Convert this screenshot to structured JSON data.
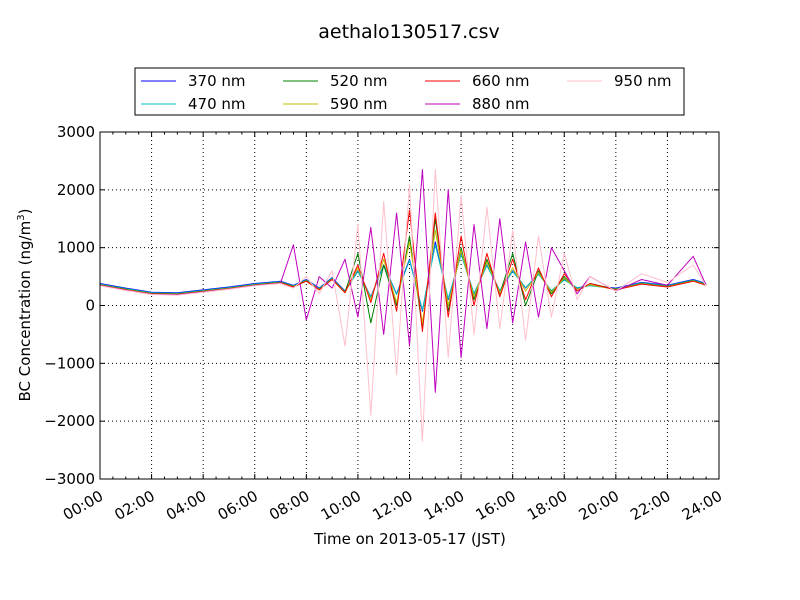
{
  "chart_data": {
    "type": "line",
    "title": "aethalo130517.csv",
    "xlabel": "Time on 2013-05-17 (JST)",
    "ylabel_main": "BC Concentration (ng/m",
    "ylabel_sup": "3",
    "ylabel_close": ")",
    "xlim": [
      "00:00",
      "24:00"
    ],
    "ylim": [
      -3000,
      3000
    ],
    "grid": true,
    "legend_position": "top",
    "x_ticks": [
      "00:00",
      "02:00",
      "04:00",
      "06:00",
      "08:00",
      "10:00",
      "12:00",
      "14:00",
      "16:00",
      "18:00",
      "20:00",
      "22:00",
      "24:00"
    ],
    "y_ticks": [
      3000,
      2000,
      1000,
      0,
      -1000,
      -2000,
      -3000
    ],
    "y_tick_labels": [
      "3000",
      "2000",
      "1000",
      "0",
      "−1000",
      "−2000",
      "−3000"
    ],
    "x_hours": [
      0,
      1,
      2,
      3,
      4,
      5,
      6,
      7,
      7.5,
      8,
      8.5,
      9,
      9.5,
      10,
      10.5,
      11,
      11.5,
      12,
      12.5,
      13,
      13.5,
      14,
      14.5,
      15,
      15.5,
      16,
      16.5,
      17,
      17.5,
      18,
      18.5,
      19,
      20,
      21,
      22,
      23,
      23.5
    ],
    "series": [
      {
        "name": "370 nm",
        "color": "#0000ff",
        "values": [
          380,
          300,
          230,
          220,
          270,
          320,
          380,
          420,
          350,
          450,
          300,
          480,
          250,
          600,
          150,
          700,
          200,
          800,
          -100,
          1100,
          100,
          900,
          200,
          700,
          250,
          600,
          300,
          550,
          250,
          450,
          300,
          350,
          300,
          400,
          350,
          450,
          380
        ]
      },
      {
        "name": "470 nm",
        "color": "#00bfbf",
        "values": [
          370,
          290,
          220,
          210,
          260,
          310,
          370,
          410,
          340,
          440,
          290,
          470,
          240,
          590,
          140,
          690,
          190,
          780,
          -80,
          1050,
          120,
          880,
          210,
          690,
          260,
          590,
          310,
          540,
          260,
          440,
          310,
          340,
          290,
          390,
          340,
          440,
          370
        ]
      },
      {
        "name": "520 nm",
        "color": "#008000",
        "values": [
          360,
          280,
          210,
          200,
          250,
          300,
          360,
          400,
          330,
          430,
          280,
          460,
          230,
          900,
          -300,
          700,
          0,
          1200,
          -400,
          1500,
          -100,
          1000,
          100,
          800,
          200,
          900,
          0,
          600,
          200,
          500,
          250,
          380,
          280,
          380,
          330,
          430,
          360
        ]
      },
      {
        "name": "590 nm",
        "color": "#bfbf00",
        "values": [
          355,
          275,
          205,
          195,
          245,
          295,
          355,
          395,
          325,
          425,
          275,
          455,
          225,
          650,
          100,
          800,
          50,
          1100,
          -300,
          1300,
          0,
          950,
          150,
          750,
          220,
          650,
          250,
          570,
          230,
          470,
          280,
          360,
          275,
          375,
          325,
          425,
          355
        ]
      },
      {
        "name": "660 nm",
        "color": "#ff0000",
        "values": [
          350,
          270,
          200,
          190,
          240,
          290,
          350,
          390,
          320,
          420,
          270,
          450,
          220,
          700,
          50,
          900,
          -100,
          1650,
          -450,
          1600,
          -200,
          1200,
          0,
          900,
          150,
          800,
          100,
          650,
          150,
          550,
          250,
          380,
          270,
          370,
          320,
          420,
          350
        ]
      },
      {
        "name": "880 nm",
        "color": "#bf00bf",
        "values": [
          345,
          265,
          195,
          185,
          235,
          285,
          345,
          385,
          1050,
          -250,
          500,
          300,
          800,
          -200,
          1350,
          -500,
          1600,
          -700,
          2350,
          -1500,
          2000,
          -900,
          1400,
          -400,
          1500,
          -300,
          1100,
          -200,
          1000,
          600,
          200,
          500,
          250,
          450,
          350,
          850,
          350
        ]
      },
      {
        "name": "950 nm",
        "color": "#ffc0cb",
        "values": [
          340,
          260,
          190,
          180,
          230,
          280,
          340,
          380,
          300,
          500,
          200,
          600,
          -700,
          1400,
          -1900,
          1800,
          -1200,
          2100,
          -2350,
          2350,
          -900,
          1900,
          -500,
          1700,
          -400,
          1300,
          -600,
          1200,
          -200,
          900,
          100,
          500,
          250,
          550,
          400,
          700,
          340
        ]
      }
    ]
  }
}
